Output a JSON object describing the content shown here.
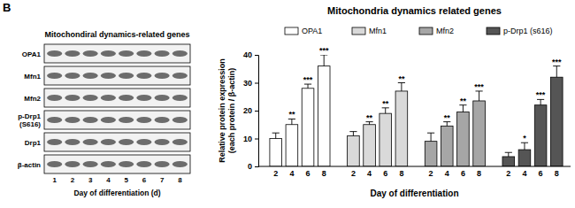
{
  "panel_label": "B",
  "blot": {
    "title": "Mitochondiral dynamics-related genes",
    "rows": [
      "OPA1",
      "Mfn1",
      "Mfn2",
      "p-Drp1\n(S616)",
      "Drp1",
      "β-actin"
    ],
    "lanes": [
      "1",
      "2",
      "3",
      "4",
      "5",
      "6",
      "7",
      "8"
    ],
    "xlabel": "Day of differentiation (d)"
  },
  "chart_data": {
    "type": "bar",
    "title": "Mitochondria dynamics related genes",
    "xlabel": "Day of differentiation",
    "ylabel": "Relative protein expression\n(each protein / β-actin)",
    "categories": [
      "2",
      "4",
      "6",
      "8"
    ],
    "series": [
      {
        "name": "OPA1",
        "color": "#ffffff",
        "values": [
          10,
          15,
          28,
          36
        ],
        "errors": [
          2,
          2,
          1.5,
          4
        ],
        "annotations": [
          null,
          "**",
          "***",
          "***"
        ]
      },
      {
        "name": "Mfn1",
        "color": "#d9d9d9",
        "values": [
          11,
          15,
          19,
          27
        ],
        "errors": [
          1.5,
          1,
          2,
          3
        ],
        "annotations": [
          null,
          "**",
          "**",
          "**"
        ]
      },
      {
        "name": "Mfn2",
        "color": "#a6a6a6",
        "values": [
          9,
          14.5,
          19.5,
          23.5
        ],
        "errors": [
          3,
          1.5,
          2.5,
          3.5
        ],
        "annotations": [
          null,
          "**",
          "**",
          "***"
        ]
      },
      {
        "name": "p-Drp1 (s616)",
        "color": "#555555",
        "values": [
          3.5,
          6,
          22,
          32
        ],
        "errors": [
          1.5,
          2.5,
          2,
          4
        ],
        "annotations": [
          null,
          "*",
          "***",
          "***"
        ]
      }
    ],
    "ylim": [
      0,
      40
    ],
    "yticks": [
      0,
      10,
      20,
      30,
      40
    ],
    "legend": "top"
  }
}
